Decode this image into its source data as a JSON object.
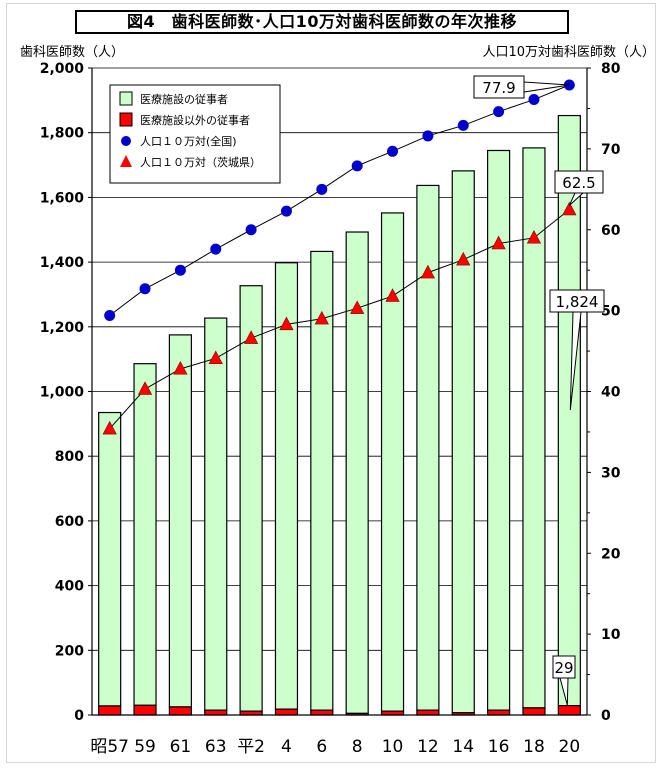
{
  "chart_data": {
    "type": "bar",
    "title": "図4　歯科医師数･人口10万対歯科医師数の年次推移",
    "ylabel_left": "歯科医師数（人）",
    "ylabel_right": "人口10万対歯科医師数（人）",
    "categories": [
      "昭57",
      "59",
      "61",
      "63",
      "平2",
      "4",
      "6",
      "8",
      "10",
      "12",
      "14",
      "16",
      "18",
      "20"
    ],
    "ylim_left": [
      0,
      2000
    ],
    "ylim_right": [
      0,
      80
    ],
    "yticks_left": [
      "0",
      "200",
      "400",
      "600",
      "800",
      "1,000",
      "1,200",
      "1,400",
      "1,600",
      "1,800",
      "2,000"
    ],
    "yticks_right": [
      "0",
      "10",
      "20",
      "30",
      "40",
      "50",
      "60",
      "70",
      "80"
    ],
    "grid": true,
    "legend_position": "top-left",
    "series": [
      {
        "name": "医療施設の従事者",
        "kind": "bar",
        "color": "#ccffcc",
        "values": [
          907,
          1056,
          1150,
          1212,
          1315,
          1380,
          1418,
          1488,
          1540,
          1622,
          1675,
          1730,
          1731,
          1824
        ]
      },
      {
        "name": "医療施設以外の従事者",
        "kind": "bar",
        "color": "#ff0000",
        "values": [
          28,
          30,
          25,
          15,
          12,
          18,
          15,
          5,
          12,
          15,
          7,
          15,
          22,
          29
        ]
      },
      {
        "name": "人口１０万対(全国)",
        "kind": "line",
        "axis": "right",
        "color": "#0000cc",
        "marker": "circle",
        "values": [
          49.4,
          52.7,
          55.0,
          57.6,
          60.0,
          62.3,
          65.0,
          67.9,
          69.7,
          71.6,
          72.9,
          74.6,
          76.1,
          77.9
        ]
      },
      {
        "name": "人口１０万対（茨城県）",
        "kind": "line",
        "axis": "right",
        "color": "#ff0000",
        "marker": "triangle",
        "values": [
          35.4,
          40.3,
          42.8,
          44.1,
          46.6,
          48.3,
          49.0,
          50.3,
          51.8,
          54.7,
          56.3,
          58.3,
          59.0,
          62.5
        ]
      }
    ],
    "annotations": [
      {
        "text": "77.9"
      },
      {
        "text": "62.5"
      },
      {
        "text": "1,824"
      },
      {
        "text": "29"
      }
    ]
  }
}
